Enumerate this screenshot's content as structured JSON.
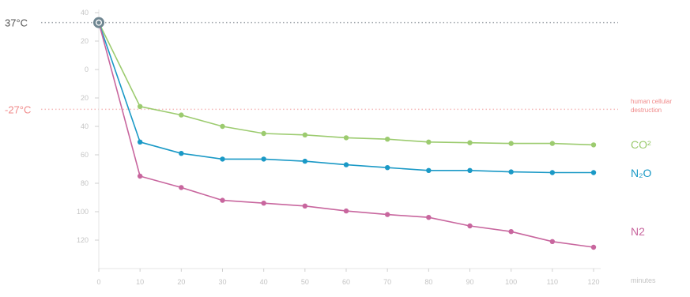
{
  "chart_data": {
    "type": "line",
    "xlabel": "minutes",
    "ylabel": "",
    "xlim": [
      0,
      120
    ],
    "ylim": [
      -120,
      40
    ],
    "x_ticks": [
      0,
      10,
      20,
      30,
      40,
      50,
      60,
      70,
      80,
      90,
      100,
      110,
      120
    ],
    "y_ticks": [
      40,
      20,
      0,
      -20,
      -40,
      -60,
      -80,
      -100,
      -120
    ],
    "y_tick_labels": [
      "40",
      "20",
      "0",
      "20",
      "40",
      "60",
      "80",
      "100",
      "120"
    ],
    "grid": false,
    "start_point": {
      "x": 0,
      "y": 33
    },
    "reference_lines": [
      {
        "y": 33,
        "label": "37°C",
        "color": "#9aa0a6"
      },
      {
        "y": -28,
        "label": "-27°C",
        "color": "#f08a8a",
        "note": "human cellular destruction"
      }
    ],
    "series": [
      {
        "name": "CO²",
        "color": "#9ccb6f",
        "x": [
          0,
          10,
          20,
          30,
          40,
          50,
          60,
          70,
          80,
          90,
          100,
          110,
          120
        ],
        "y": [
          33,
          -26,
          -32,
          -40,
          -45,
          -46,
          -48,
          -49,
          -51,
          -51.5,
          -52,
          -52,
          -53
        ]
      },
      {
        "name": "N₂O",
        "color": "#1a99c6",
        "x": [
          0,
          10,
          20,
          30,
          40,
          50,
          60,
          70,
          80,
          90,
          100,
          110,
          120
        ],
        "y": [
          33,
          -51,
          -59,
          -63,
          -63,
          -64.5,
          -67,
          -69,
          -71,
          -71,
          -72,
          -72.5,
          -72.5
        ]
      },
      {
        "name": "N2",
        "color": "#c8669e",
        "x": [
          0,
          10,
          20,
          30,
          40,
          50,
          60,
          70,
          80,
          90,
          100,
          110,
          120
        ],
        "y": [
          33,
          -75,
          -83,
          -92,
          -94,
          -96,
          -99.5,
          -102,
          -104,
          -110,
          -114,
          -121,
          -125
        ]
      }
    ]
  }
}
